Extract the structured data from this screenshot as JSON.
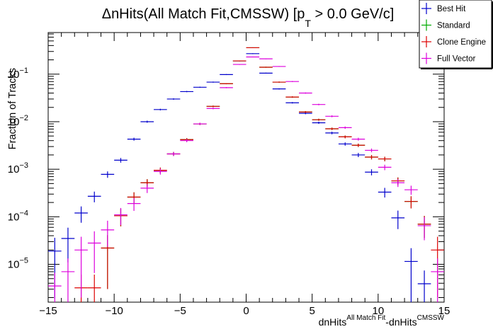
{
  "chart_data": {
    "type": "scatter",
    "title": {
      "prefix": "ΔnHits(All Match Fit,CMSSW) [p",
      "sub": "T",
      "suffix": " > 0.0 GeV/c]"
    },
    "xlabel": {
      "base1": "dnHits",
      "sup1": "All Match Fit",
      "base2": "-dnHits",
      "sup2": "CMSSW"
    },
    "ylabel": "Fraction of Tracks",
    "xlim": [
      -15,
      15
    ],
    "ylim": [
      1.6e-06,
      0.75
    ],
    "yscale": "log",
    "grid": false,
    "legend_position": "top-right",
    "x_ticks": [
      "−15",
      "−10",
      "−5",
      "0",
      "5",
      "10",
      "15"
    ],
    "x_tick_values": [
      -15,
      -10,
      -5,
      0,
      5,
      10,
      15
    ],
    "y_ticks": [
      {
        "base": "10",
        "exp": "−5",
        "value": 1e-05
      },
      {
        "base": "10",
        "exp": "−4",
        "value": 0.0001
      },
      {
        "base": "10",
        "exp": "−3",
        "value": 0.001
      },
      {
        "base": "10",
        "exp": "−2",
        "value": 0.01
      },
      {
        "base": "10",
        "exp": "−1",
        "value": 0.1
      }
    ],
    "series": [
      {
        "name": "Best Hit",
        "color": "#0000cc",
        "points": [
          [
            -14.5,
            1.9e-05
          ],
          [
            -13.5,
            3.5e-05
          ],
          [
            -12.5,
            0.00012
          ],
          [
            -11.5,
            0.00027
          ],
          [
            -10.5,
            0.00078
          ],
          [
            -9.5,
            0.00155
          ],
          [
            -8.5,
            0.0043
          ],
          [
            -7.5,
            0.01
          ],
          [
            -6.5,
            0.018
          ],
          [
            -5.5,
            0.03
          ],
          [
            -4.5,
            0.043
          ],
          [
            -3.5,
            0.053
          ],
          [
            -2.5,
            0.068
          ],
          [
            -1.5,
            0.098
          ],
          [
            -0.5,
            0.19
          ],
          [
            0.5,
            0.27
          ],
          [
            1.5,
            0.105
          ],
          [
            2.5,
            0.049
          ],
          [
            3.5,
            0.025
          ],
          [
            4.5,
            0.015
          ],
          [
            5.5,
            0.0095
          ],
          [
            6.5,
            0.0058
          ],
          [
            7.5,
            0.0034
          ],
          [
            8.5,
            0.002
          ],
          [
            9.5,
            0.00087
          ],
          [
            10.5,
            0.00033
          ],
          [
            11.5,
            9.5e-05
          ],
          [
            12.5,
            1.15e-05
          ],
          [
            13.5,
            3.9e-06
          ]
        ]
      },
      {
        "name": "Standard",
        "color": "#00aa00",
        "points": [
          [
            -10.5,
            2.2e-05
          ],
          [
            -9.5,
            0.000105
          ],
          [
            -8.5,
            0.00026
          ],
          [
            -7.5,
            0.00052
          ],
          [
            -6.5,
            0.00095
          ],
          [
            -5.5,
            0.0021
          ],
          [
            -4.5,
            0.0042
          ],
          [
            -3.5,
            0.009
          ],
          [
            -2.5,
            0.021
          ],
          [
            -1.5,
            0.063
          ],
          [
            -0.5,
            0.19
          ],
          [
            0.5,
            0.36
          ],
          [
            1.5,
            0.14
          ],
          [
            2.5,
            0.068
          ],
          [
            3.5,
            0.033
          ],
          [
            4.5,
            0.016
          ],
          [
            5.5,
            0.011
          ],
          [
            6.5,
            0.0071
          ],
          [
            7.5,
            0.0048
          ],
          [
            8.5,
            0.0032
          ],
          [
            9.5,
            0.0018
          ],
          [
            10.5,
            0.00165
          ],
          [
            11.5,
            0.00057
          ],
          [
            12.5,
            0.00021
          ],
          [
            13.5,
            7e-05
          ]
        ]
      },
      {
        "name": "Clone Engine",
        "color": "#dd0000",
        "points": [
          [
            -12.5,
            3.2e-06
          ],
          [
            -11.5,
            3.2e-06
          ],
          [
            -10.5,
            2.2e-05
          ],
          [
            -9.5,
            0.000105
          ],
          [
            -8.5,
            0.00026
          ],
          [
            -7.5,
            0.00052
          ],
          [
            -6.5,
            0.00095
          ],
          [
            -5.5,
            0.0021
          ],
          [
            -4.5,
            0.0042
          ],
          [
            -3.5,
            0.009
          ],
          [
            -2.5,
            0.021
          ],
          [
            -1.5,
            0.063
          ],
          [
            -0.5,
            0.19
          ],
          [
            0.5,
            0.36
          ],
          [
            1.5,
            0.14
          ],
          [
            2.5,
            0.068
          ],
          [
            3.5,
            0.033
          ],
          [
            4.5,
            0.016
          ],
          [
            5.5,
            0.011
          ],
          [
            6.5,
            0.0071
          ],
          [
            7.5,
            0.0048
          ],
          [
            8.5,
            0.0032
          ],
          [
            9.5,
            0.0018
          ],
          [
            10.5,
            0.00165
          ],
          [
            11.5,
            0.00057
          ],
          [
            12.5,
            0.00021
          ],
          [
            13.5,
            7e-05
          ],
          [
            14.5,
            2e-05
          ]
        ]
      },
      {
        "name": "Full Vector",
        "color": "#dd00dd",
        "points": [
          [
            -14.5,
            3.5e-06
          ],
          [
            -13.5,
            7e-06
          ],
          [
            -12.5,
            2e-05
          ],
          [
            -11.5,
            2.8e-05
          ],
          [
            -10.5,
            5.3e-05
          ],
          [
            -9.5,
            0.00011
          ],
          [
            -8.5,
            0.00019
          ],
          [
            -7.5,
            0.0004
          ],
          [
            -6.5,
            0.0009
          ],
          [
            -5.5,
            0.0021
          ],
          [
            -4.5,
            0.004
          ],
          [
            -3.5,
            0.009
          ],
          [
            -2.5,
            0.019
          ],
          [
            -1.5,
            0.052
          ],
          [
            -0.5,
            0.16
          ],
          [
            0.5,
            0.23
          ],
          [
            1.5,
            0.21
          ],
          [
            2.5,
            0.145
          ],
          [
            3.5,
            0.07
          ],
          [
            4.5,
            0.04
          ],
          [
            5.5,
            0.023
          ],
          [
            6.5,
            0.013
          ],
          [
            7.5,
            0.0075
          ],
          [
            8.5,
            0.0043
          ],
          [
            9.5,
            0.0025
          ],
          [
            10.5,
            0.0011
          ],
          [
            11.5,
            0.00052
          ],
          [
            12.5,
            0.00037
          ],
          [
            13.5,
            6.5e-05
          ],
          [
            14.5,
            7e-06
          ]
        ]
      }
    ]
  }
}
